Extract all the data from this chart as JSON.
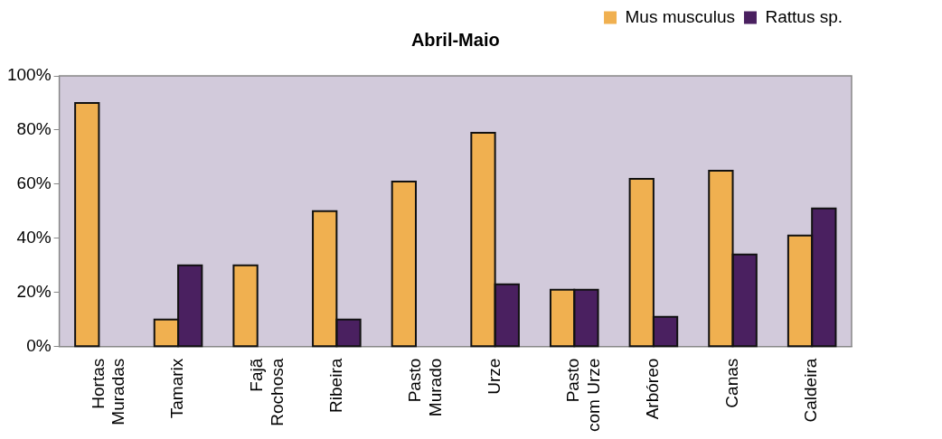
{
  "chart_data": {
    "type": "bar",
    "title": "Abril-Maio",
    "categories": [
      "Hortas\nMuradas",
      "Tamarix",
      "Fajã\nRochosa",
      "Ribeira",
      "Pasto\nMurado",
      "Urze",
      "Pasto\ncom Urze",
      "Arbóreo",
      "Canas",
      "Caldeira"
    ],
    "series": [
      {
        "name": "Mus musculus",
        "color": "#f0b050",
        "values": [
          90,
          10,
          30,
          50,
          61,
          79,
          21,
          62,
          65,
          41
        ]
      },
      {
        "name": "Rattus sp.",
        "color": "#4a2060",
        "values": [
          0,
          30,
          0,
          10,
          0,
          23,
          21,
          11,
          34,
          51
        ]
      }
    ],
    "ylim": [
      0,
      100
    ],
    "yticks": [
      {
        "value": 0,
        "label": "0%"
      },
      {
        "value": 20,
        "label": "20%"
      },
      {
        "value": 40,
        "label": "40%"
      },
      {
        "value": 60,
        "label": "60%"
      },
      {
        "value": 80,
        "label": "80%"
      },
      {
        "value": 100,
        "label": "100%"
      }
    ],
    "grid": false,
    "legend": "top right"
  }
}
